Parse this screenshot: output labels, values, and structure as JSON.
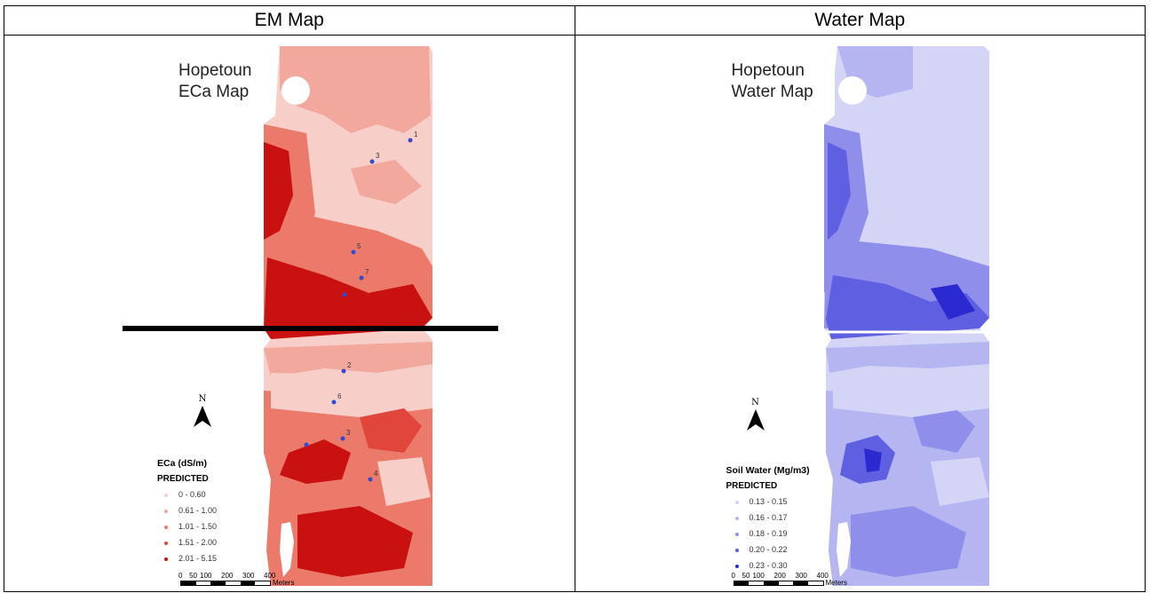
{
  "headers": {
    "left": "EM Map",
    "right": "Water Map"
  },
  "em_map": {
    "title_line1": "Hopetoun",
    "title_line2": "ECa Map",
    "legend_title": "ECa (dS/m)",
    "legend_subtitle": "PREDICTED",
    "legend_items": [
      {
        "label": "0 - 0.60",
        "color": "#f7cfc8"
      },
      {
        "label": "0.61 - 1.00",
        "color": "#f2a89c"
      },
      {
        "label": "1.01 - 1.50",
        "color": "#ec7a6b"
      },
      {
        "label": "1.51 - 2.00",
        "color": "#e0463a"
      },
      {
        "label": "2.01 - 5.15",
        "color": "#c9110f"
      }
    ],
    "sample_points": [
      "1",
      "3",
      "5",
      "7",
      "2",
      "6",
      "3",
      "4"
    ],
    "north_label": "N",
    "scale_ticks": [
      "0",
      "50",
      "100",
      "200",
      "300",
      "400"
    ],
    "scale_unit": "Meters"
  },
  "water_map": {
    "title_line1": "Hopetoun",
    "title_line2": "Water Map",
    "legend_title": "Soil Water (Mg/m3)",
    "legend_subtitle": "PREDICTED",
    "legend_items": [
      {
        "label": "0.13 - 0.15",
        "color": "#d4d4f7"
      },
      {
        "label": "0.16 - 0.17",
        "color": "#b5b5f1"
      },
      {
        "label": "0.18 - 0.19",
        "color": "#8f8feb"
      },
      {
        "label": "0.20 - 0.22",
        "color": "#5f5fe2"
      },
      {
        "label": "0.23 - 0.30",
        "color": "#2a2ad0"
      }
    ],
    "north_label": "N",
    "scale_ticks": [
      "0",
      "50",
      "100",
      "200",
      "300",
      "400"
    ],
    "scale_unit": "Meters"
  }
}
